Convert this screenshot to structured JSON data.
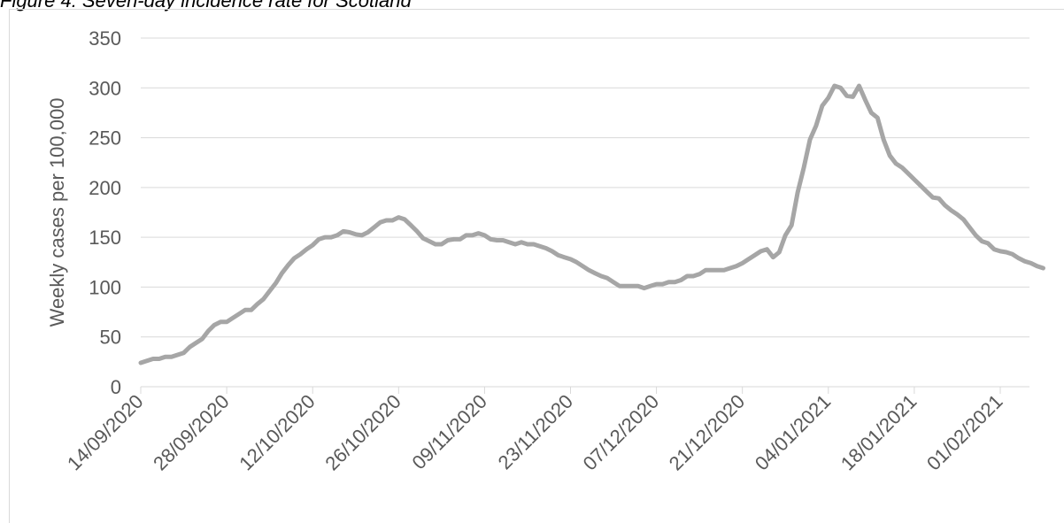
{
  "figure_title": "Figure 4: Seven-day incidence rate for Scotland",
  "chart_data": {
    "type": "line",
    "title": "",
    "xlabel": "",
    "ylabel": "Weekly cases per 100,000",
    "ylim": [
      0,
      350
    ],
    "yticks": [
      0,
      50,
      100,
      150,
      200,
      250,
      300,
      350
    ],
    "x_start": "14/09/2020",
    "xtick_labels": [
      "14/09/2020",
      "28/09/2020",
      "12/10/2020",
      "26/10/2020",
      "09/11/2020",
      "23/11/2020",
      "07/12/2020",
      "21/12/2020",
      "04/01/2021",
      "18/01/2021",
      "01/02/2021"
    ],
    "grid": true,
    "series": [
      {
        "name": "",
        "color": "#a6a6a6",
        "values": [
          24,
          26,
          28,
          28,
          30,
          30,
          32,
          34,
          40,
          44,
          48,
          56,
          62,
          65,
          65,
          69,
          73,
          77,
          77,
          83,
          88,
          96,
          104,
          114,
          122,
          129,
          133,
          138,
          142,
          148,
          150,
          150,
          152,
          156,
          155,
          153,
          152,
          155,
          160,
          165,
          167,
          167,
          170,
          168,
          162,
          156,
          149,
          146,
          143,
          143,
          147,
          148,
          148,
          152,
          152,
          154,
          152,
          148,
          147,
          147,
          145,
          143,
          145,
          143,
          143,
          141,
          139,
          136,
          132,
          130,
          128,
          125,
          121,
          117,
          114,
          111,
          109,
          105,
          101,
          101,
          101,
          101,
          99,
          101,
          103,
          103,
          105,
          105,
          107,
          111,
          111,
          113,
          117,
          117,
          117,
          117,
          119,
          121,
          124,
          128,
          132,
          136,
          138,
          130,
          135,
          152,
          162,
          195,
          220,
          248,
          262,
          282,
          290,
          302,
          300,
          292,
          291,
          302,
          288,
          275,
          270,
          248,
          232,
          224,
          220,
          214,
          208,
          202,
          196,
          190,
          189,
          182,
          177,
          173,
          168,
          160,
          152,
          146,
          144,
          138,
          136,
          135,
          133,
          129,
          126,
          124,
          121,
          119
        ]
      }
    ]
  }
}
